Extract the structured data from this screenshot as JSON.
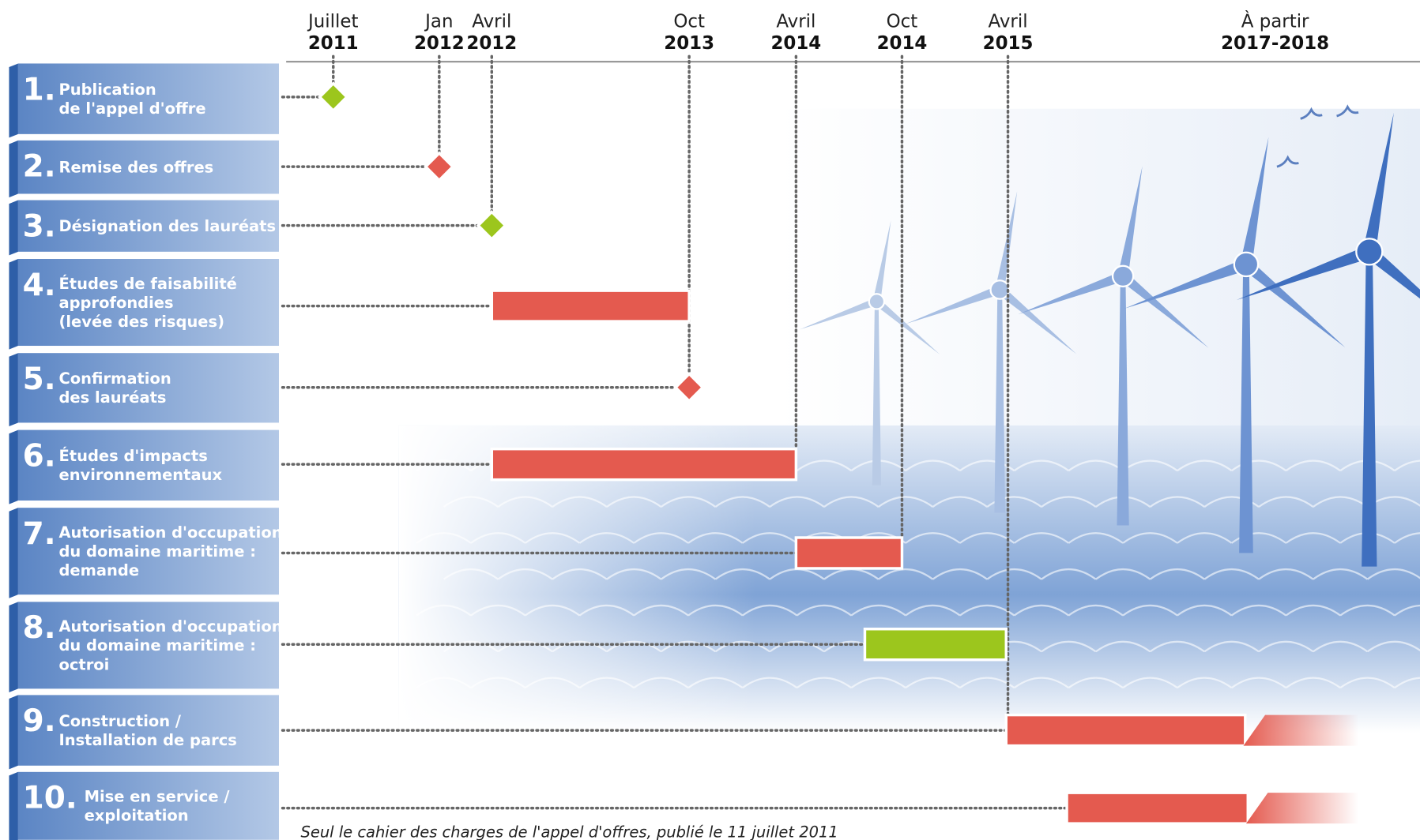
{
  "timeline": {
    "dates": [
      {
        "month": "Juillet",
        "year": "2011"
      },
      {
        "month": "Jan",
        "year": "2012"
      },
      {
        "month": "Avril",
        "year": "2012"
      },
      {
        "month": "Oct",
        "year": "2013"
      },
      {
        "month": "Avril",
        "year": "2014"
      },
      {
        "month": "Oct",
        "year": "2014"
      },
      {
        "month": "Avril",
        "year": "2015"
      },
      {
        "month": "À partir",
        "year": "2017-2018"
      }
    ]
  },
  "steps": [
    {
      "number": "1.",
      "label": [
        "Publication",
        "de l'appel d'offre"
      ]
    },
    {
      "number": "2.",
      "label": [
        "Remise des offres"
      ]
    },
    {
      "number": "3.",
      "label": [
        "Désignation des lauréats"
      ]
    },
    {
      "number": "4.",
      "label": [
        "Études de faisabilité",
        "approfondies",
        "(levée des risques)"
      ]
    },
    {
      "number": "5.",
      "label": [
        "Confirmation",
        "des lauréats"
      ]
    },
    {
      "number": "6.",
      "label": [
        "Études d'impacts",
        "environnementaux"
      ]
    },
    {
      "number": "7.",
      "label": [
        "Autorisation d'occupation",
        "du domaine maritime :",
        "demande"
      ]
    },
    {
      "number": "8.",
      "label": [
        "Autorisation d'occupation",
        "du domaine maritime :",
        "octroi"
      ]
    },
    {
      "number": "9.",
      "label": [
        "Construction /",
        "Installation de parcs"
      ]
    },
    {
      "number": "10.",
      "label": [
        "Mise en service /",
        "exploitation"
      ]
    }
  ],
  "footnote": "Seul le cahier des charges de l'appel d'offres, publié le 11 juillet 2011"
}
